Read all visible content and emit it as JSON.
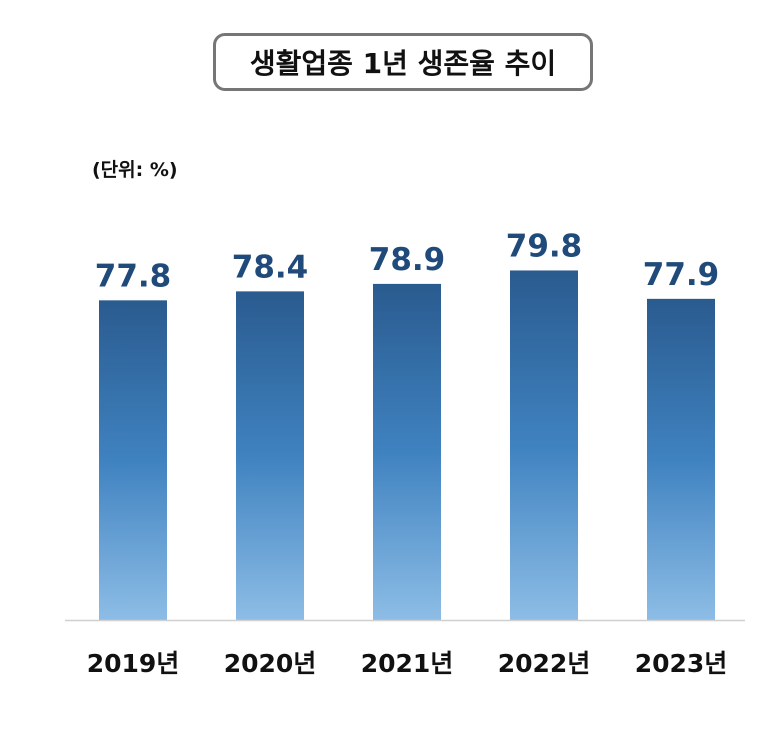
{
  "chart_data": {
    "type": "bar",
    "title": "생활업종 1년 생존율 추이",
    "unit_label": "(단위: %)",
    "categories": [
      "2019년",
      "2020년",
      "2021년",
      "2022년",
      "2023년"
    ],
    "series": [
      {
        "values": [
          77.8,
          78.4,
          78.9,
          79.8,
          77.9
        ]
      }
    ],
    "value_labels": [
      "77.8",
      "78.4",
      "78.9",
      "79.8",
      "77.9"
    ],
    "ylim": [
      56.4,
      80.5
    ],
    "grid": false,
    "legend": "none",
    "colors": {
      "bar_top": "#2a5b8f",
      "bar_mid": "#3f82c0",
      "bar_bottom": "#8dbde6",
      "value_label": "#1f4a7a",
      "axis": "#d0d0d0",
      "category_label": "#111111"
    }
  }
}
